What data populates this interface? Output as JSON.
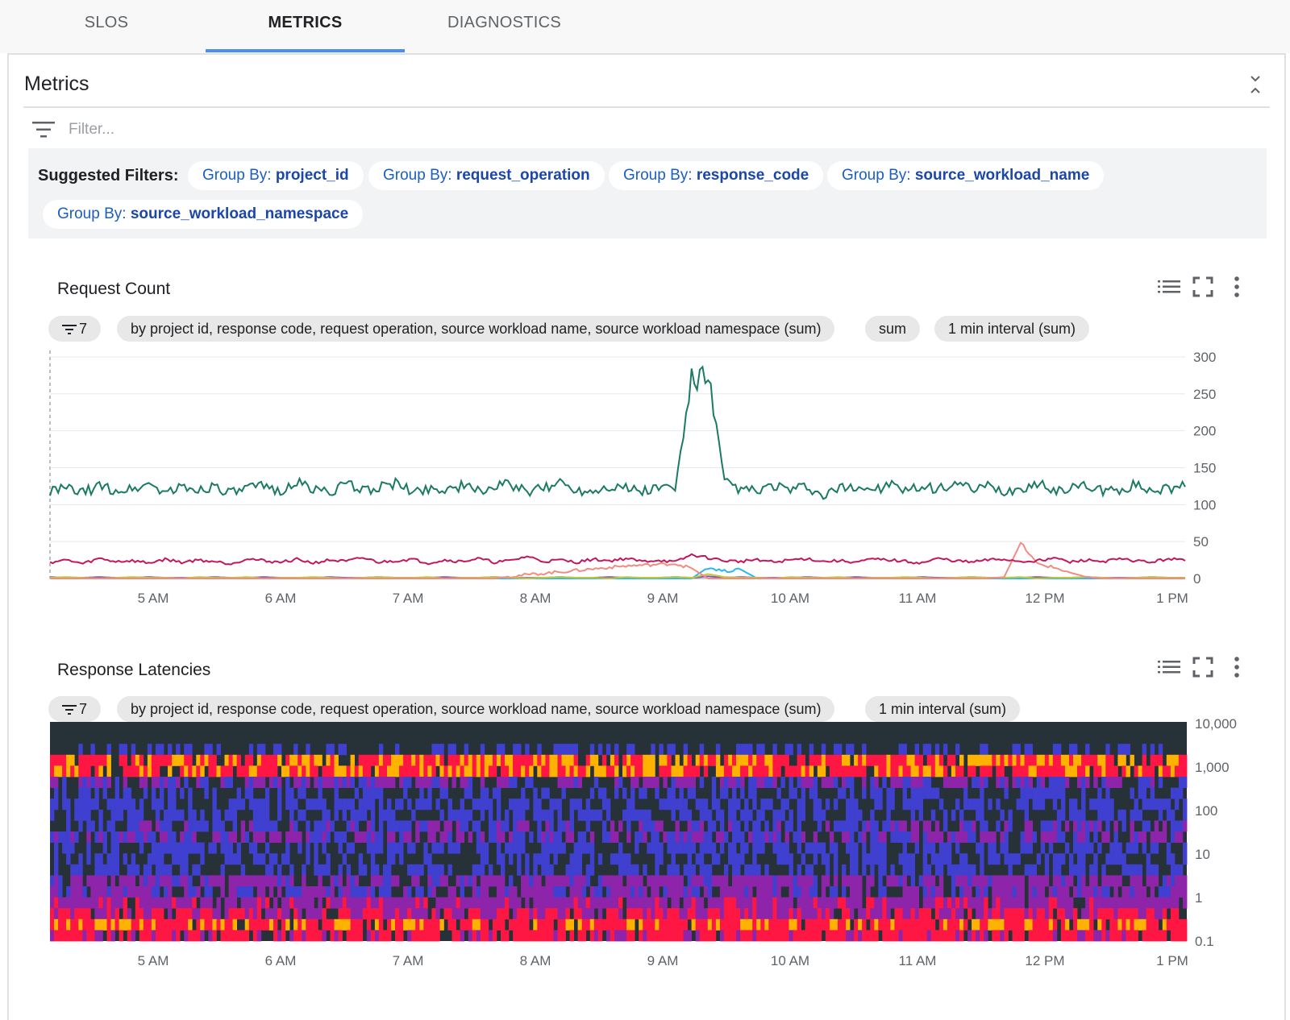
{
  "tabs": [
    {
      "label": "SLOS",
      "active": false
    },
    {
      "label": "METRICS",
      "active": true
    },
    {
      "label": "DIAGNOSTICS",
      "active": false
    }
  ],
  "panel": {
    "title": "Metrics",
    "filter_placeholder": "Filter..."
  },
  "suggested_filters": {
    "label": "Suggested Filters:",
    "prefix": "Group By:",
    "chips": [
      "project_id",
      "request_operation",
      "response_code",
      "source_workload_name",
      "source_workload_namespace"
    ]
  },
  "charts": [
    {
      "title": "Request Count",
      "filter_count": "7",
      "pills": [
        "by project id, response code, request operation, source workload name, source workload namespace (sum)",
        "sum",
        "1 min interval (sum)"
      ]
    },
    {
      "title": "Response Latencies",
      "filter_count": "7",
      "pills": [
        "by project id, response code, request operation, source workload name, source workload namespace (sum)",
        "1 min interval (sum)"
      ]
    }
  ],
  "chart_data": [
    {
      "type": "line",
      "title": "Request Count",
      "x_ticks": [
        "5 AM",
        "6 AM",
        "7 AM",
        "8 AM",
        "9 AM",
        "10 AM",
        "11 AM",
        "12 PM",
        "1 PM"
      ],
      "y_ticks": [
        "0",
        "50",
        "100",
        "150",
        "200",
        "250",
        "300"
      ],
      "ylim": [
        0,
        300
      ],
      "grid": true,
      "series": [
        {
          "color": "#1b7a64",
          "values": [
            118,
            122,
            116,
            125,
            119,
            121,
            128,
            117,
            123,
            120,
            126,
            115,
            122,
            124,
            119,
            130,
            121,
            118,
            127,
            120,
            123,
            129,
            117,
            122,
            121,
            125,
            119,
            124,
            128,
            116,
            122,
            131,
            120,
            119,
            126,
            123,
            118,
            124,
            121,
            270,
            275,
            130,
            121,
            118,
            126,
            119,
            124,
            110,
            122,
            125,
            120,
            127,
            118,
            123,
            121,
            130,
            119,
            124,
            117,
            122,
            128,
            120,
            123,
            125,
            118,
            121,
            126,
            119,
            122,
            124
          ]
        },
        {
          "color": "#c2185b",
          "values": [
            22,
            25,
            20,
            27,
            23,
            24,
            21,
            26,
            22,
            25,
            23,
            20,
            27,
            24,
            22,
            26,
            21,
            25,
            23,
            28,
            22,
            24,
            26,
            21,
            25,
            23,
            27,
            22,
            24,
            30,
            23,
            25,
            22,
            26,
            24,
            27,
            23,
            25,
            22,
            32,
            28,
            24,
            23,
            26,
            22,
            25,
            27,
            23,
            24,
            22,
            26,
            25,
            23,
            21,
            27,
            24,
            22,
            25,
            26,
            23,
            24,
            28,
            22,
            25,
            23,
            26,
            24,
            22,
            27,
            24
          ]
        },
        {
          "color": "#f28b82",
          "values": [
            0,
            0,
            0,
            0,
            0,
            0,
            0,
            0,
            0,
            0,
            0,
            0,
            0,
            0,
            0,
            0,
            0,
            0,
            0,
            0,
            0,
            0,
            0,
            0,
            0,
            0,
            0,
            0,
            3,
            5,
            7,
            9,
            11,
            13,
            15,
            17,
            18,
            19,
            20,
            14,
            0,
            0,
            0,
            0,
            0,
            0,
            0,
            0,
            0,
            0,
            0,
            0,
            0,
            0,
            0,
            0,
            0,
            0,
            2,
            48,
            20,
            15,
            8,
            2,
            0,
            0,
            0,
            0,
            0,
            0
          ]
        },
        {
          "color": "#c0ca33",
          "values": [
            1,
            2,
            1,
            0,
            1,
            2,
            1,
            1,
            0,
            2,
            1,
            1,
            2,
            0,
            1,
            1,
            2,
            1,
            0,
            1,
            2,
            1,
            1,
            2,
            0,
            1,
            1,
            2,
            1,
            0,
            1,
            2,
            1,
            1,
            0,
            2,
            1,
            1,
            2,
            1,
            6,
            2,
            1,
            1,
            0,
            2,
            1,
            1,
            2,
            0,
            1,
            1,
            2,
            1,
            0,
            1,
            2,
            1,
            1,
            2,
            0,
            1,
            1,
            2,
            1,
            0,
            1,
            2,
            1,
            1
          ]
        },
        {
          "color": "#29b6f6",
          "values": [
            0,
            0,
            0,
            0,
            0,
            0,
            0,
            0,
            0,
            0,
            0,
            0,
            0,
            0,
            0,
            0,
            0,
            0,
            0,
            0,
            0,
            0,
            0,
            0,
            0,
            0,
            0,
            0,
            0,
            0,
            0,
            0,
            0,
            0,
            0,
            0,
            0,
            0,
            0,
            0,
            15,
            10,
            12,
            0,
            0,
            0,
            0,
            0,
            0,
            0,
            0,
            0,
            0,
            0,
            0,
            0,
            0,
            0,
            0,
            0,
            0,
            0,
            0,
            0,
            0,
            0,
            0,
            0,
            0,
            0
          ]
        },
        {
          "color": "#7e57c2",
          "values": [
            2,
            1,
            1,
            2,
            1,
            1,
            2,
            1,
            1,
            1,
            2,
            1,
            1,
            2,
            1,
            1,
            1,
            2,
            1,
            1,
            2,
            1,
            1,
            1,
            2,
            1,
            1,
            2,
            1,
            1,
            1,
            2,
            1,
            1,
            2,
            1,
            1,
            1,
            2,
            1,
            3,
            1,
            2,
            1,
            1,
            1,
            2,
            1,
            1,
            2,
            1,
            1,
            1,
            2,
            1,
            1,
            2,
            1,
            1,
            1,
            2,
            1,
            1,
            2,
            1,
            1,
            1,
            2,
            1,
            1
          ]
        }
      ]
    },
    {
      "type": "heatmap",
      "title": "Response Latencies",
      "x_ticks": [
        "5 AM",
        "6 AM",
        "7 AM",
        "8 AM",
        "9 AM",
        "10 AM",
        "11 AM",
        "12 PM",
        "1 PM"
      ],
      "y_ticks": [
        "10,000",
        "1,000",
        "100",
        "10",
        "1",
        "0.1"
      ],
      "y_scale": "log",
      "ylim": [
        0.1,
        10000
      ],
      "colors": {
        "empty": "#263238",
        "low": "#3f3fd0",
        "mid": "#8e24aa",
        "high": "#ff1744",
        "peak": "#ffb300"
      },
      "band_intensity": [
        0.0,
        0.0,
        0.05,
        0.95,
        0.9,
        0.3,
        0.1,
        0.2,
        0.15,
        0.25,
        0.3,
        0.2,
        0.1,
        0.12,
        0.35,
        0.3,
        0.45,
        0.55,
        0.9,
        0.7
      ],
      "density_by_time": [
        0.85,
        0.9,
        0.88,
        0.86,
        0.9,
        0.87,
        0.89,
        0.85,
        0.9,
        0.88,
        0.86,
        0.9,
        0.87,
        0.88,
        0.86,
        0.9,
        0.87,
        0.89,
        1.0,
        0.88,
        0.86,
        0.9,
        0.87,
        0.88,
        0.86,
        0.9,
        0.87,
        0.89,
        0.88,
        0.86
      ]
    }
  ]
}
